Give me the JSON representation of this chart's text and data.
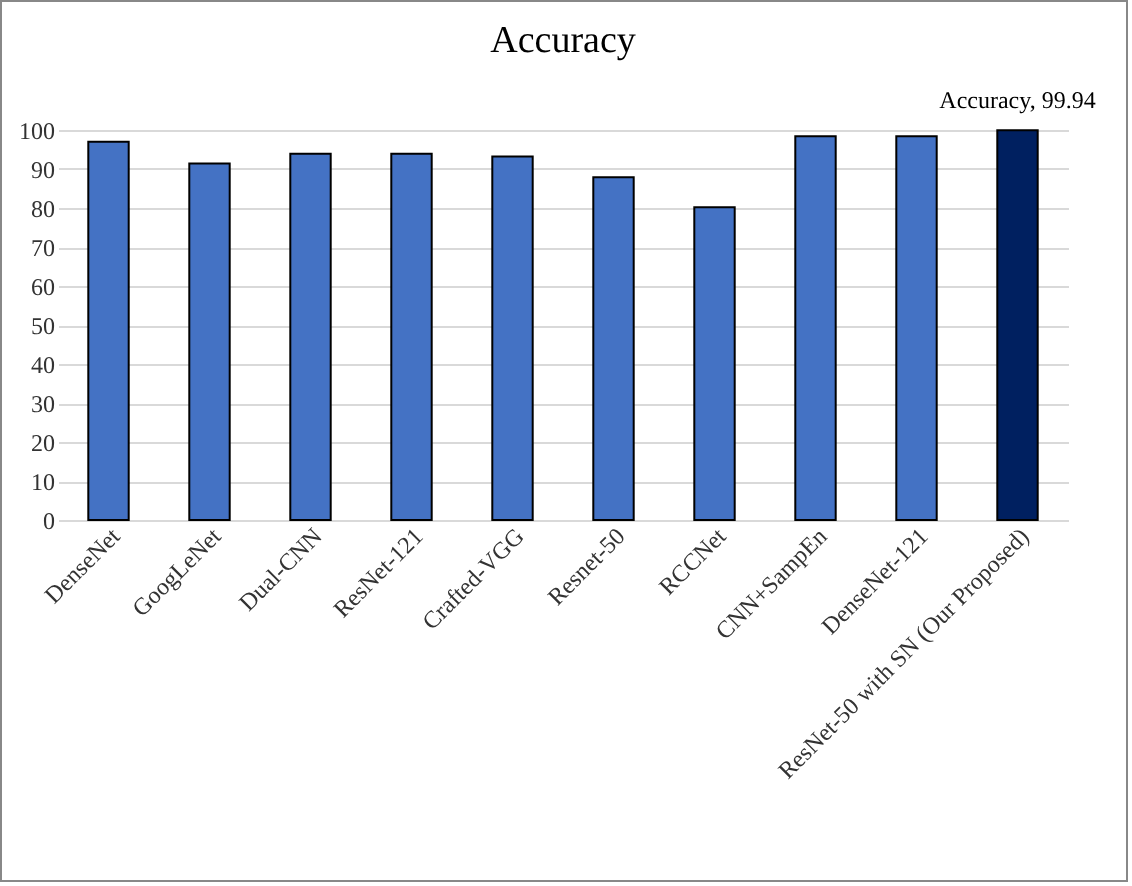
{
  "chart_data": {
    "type": "bar",
    "title": "Accuracy",
    "categories": [
      "DenseNet",
      "GoogLeNet",
      "Dual-CNN",
      "ResNet-121",
      "Crafted-VGG",
      "Resnet-50",
      "RCCNet",
      "CNN+SampEn",
      "DenseNet-121",
      "ResNet-50 with SN (Our Proposed)"
    ],
    "values": [
      97,
      91.4,
      93.9,
      93.9,
      93.2,
      87.9,
      80.2,
      98.4,
      98.4,
      99.94
    ],
    "colors": [
      "#4472c4",
      "#4472c4",
      "#4472c4",
      "#4472c4",
      "#4472c4",
      "#4472c4",
      "#4472c4",
      "#4472c4",
      "#4472c4",
      "#002060"
    ],
    "value_labels": [
      null,
      null,
      null,
      null,
      null,
      null,
      null,
      null,
      null,
      "Accuracy, 99.94"
    ],
    "ylim": [
      0,
      100
    ],
    "yticks": [
      0,
      10,
      20,
      30,
      40,
      50,
      60,
      70,
      80,
      90,
      100
    ],
    "grid": "y"
  }
}
